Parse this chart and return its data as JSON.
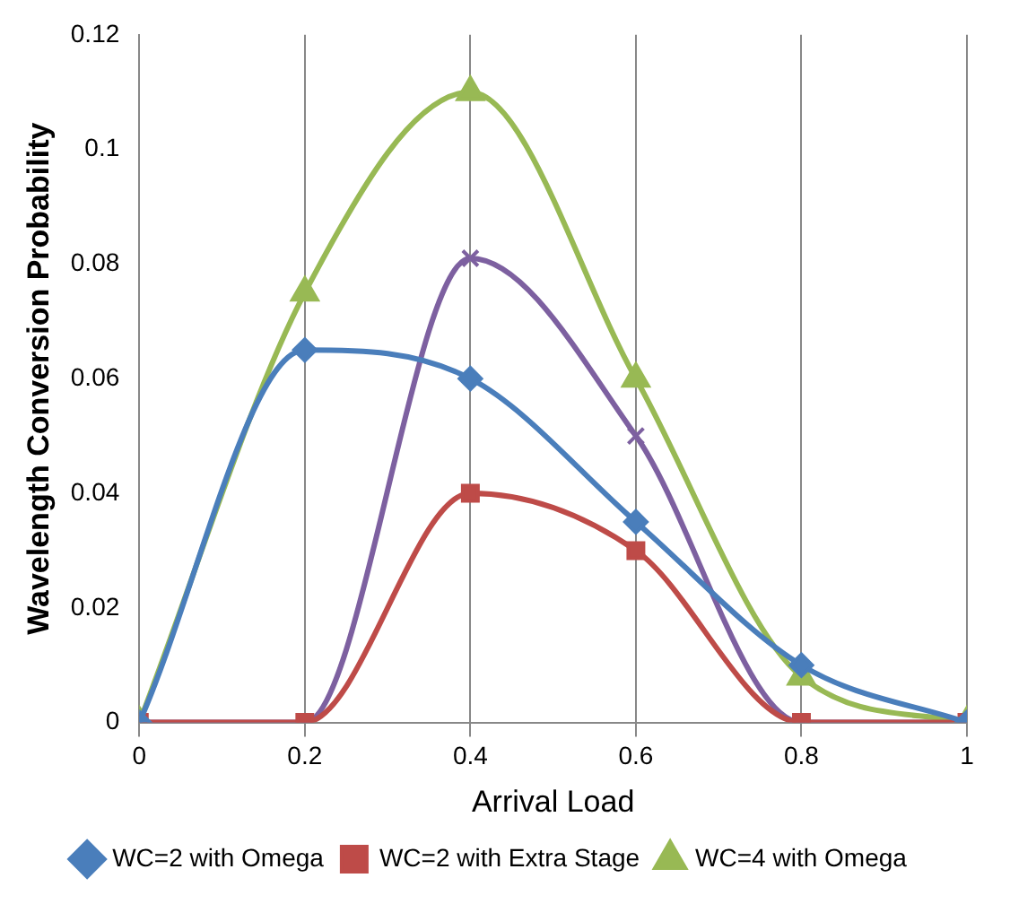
{
  "chart_data": {
    "type": "line",
    "xlabel": "Arrival Load",
    "ylabel": "Wavelength Conversion Probability",
    "x": [
      0,
      0.2,
      0.4,
      0.6,
      0.8,
      1
    ],
    "series": [
      {
        "name": "WC=2 with Omega",
        "color": "#4a7ebb",
        "marker": "diamond",
        "values": [
          0,
          0.065,
          0.06,
          0.035,
          0.01,
          0
        ]
      },
      {
        "name": "WC=2 with Extra Stage",
        "color": "#be4b48",
        "marker": "square",
        "values": [
          0,
          0,
          0.04,
          0.03,
          0,
          0
        ]
      },
      {
        "name": "WC=4 with Omega",
        "color": "#98b954",
        "marker": "triangle",
        "values": [
          0,
          0.075,
          0.11,
          0.06,
          0.008,
          0
        ]
      },
      {
        "color": "#7d60a0",
        "marker": "cross",
        "values": [
          0,
          0,
          0.081,
          0.05,
          0,
          0
        ]
      }
    ],
    "xlim": [
      0,
      1
    ],
    "xticks": [
      0,
      0.2,
      0.4,
      0.6,
      0.8,
      1
    ],
    "ylim": [
      0,
      0.12
    ],
    "yticks": [
      0,
      0.02,
      0.04,
      0.06,
      0.08,
      0.1,
      0.12
    ],
    "grid": "x",
    "legend": "bottom"
  }
}
